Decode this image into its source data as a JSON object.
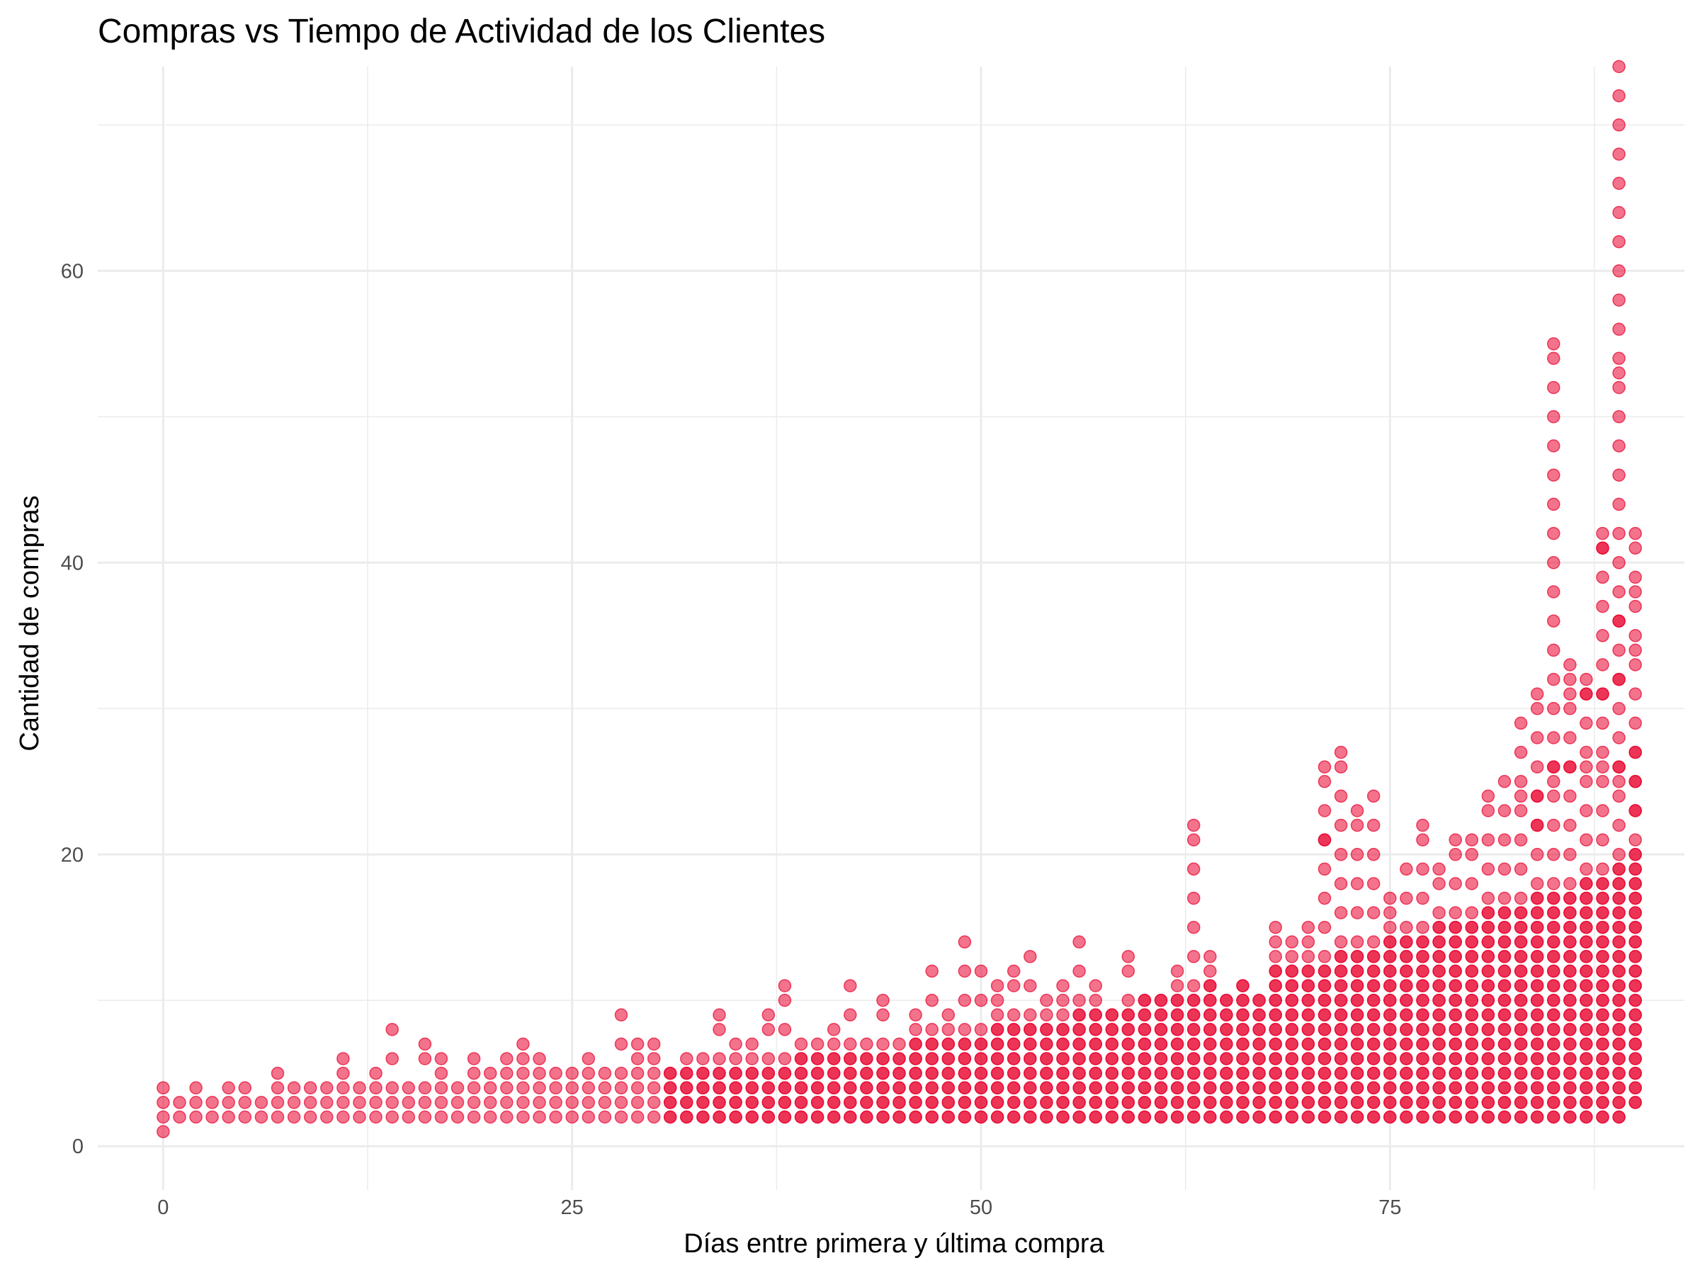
{
  "chart_data": {
    "type": "scatter",
    "title": "Compras vs Tiempo de Actividad de los Clientes",
    "xlabel": "Días entre primera y última compra",
    "ylabel": "Cantidad de compras",
    "xlim": [
      -4,
      93
    ],
    "ylim": [
      -3,
      74
    ],
    "x_ticks": [
      0,
      25,
      50,
      75
    ],
    "y_ticks": [
      0,
      20,
      40,
      60
    ],
    "grid": true,
    "legend": "none",
    "point_color": "#e8002c",
    "point_opacity": 0.55,
    "columns": [
      [
        0,
        1,
        4
      ],
      [
        1,
        2,
        3
      ],
      [
        2,
        2,
        4
      ],
      [
        3,
        2,
        3
      ],
      [
        4,
        2,
        4
      ],
      [
        5,
        2,
        4
      ],
      [
        6,
        2,
        3
      ],
      [
        7,
        2,
        5
      ],
      [
        8,
        2,
        4
      ],
      [
        9,
        2,
        4
      ],
      [
        10,
        2,
        4
      ],
      [
        11,
        2,
        6
      ],
      [
        12,
        2,
        4
      ],
      [
        13,
        2,
        5
      ],
      [
        14,
        2,
        8
      ],
      [
        15,
        2,
        4
      ],
      [
        16,
        2,
        7
      ],
      [
        17,
        2,
        6
      ],
      [
        18,
        2,
        4
      ],
      [
        19,
        2,
        6
      ],
      [
        20,
        2,
        5
      ],
      [
        21,
        2,
        6
      ],
      [
        22,
        2,
        7
      ],
      [
        23,
        2,
        6
      ],
      [
        24,
        2,
        5
      ],
      [
        25,
        2,
        5
      ],
      [
        26,
        2,
        6
      ],
      [
        27,
        2,
        5
      ],
      [
        28,
        2,
        9
      ],
      [
        29,
        2,
        7
      ],
      [
        30,
        2,
        7
      ],
      [
        31,
        2,
        5
      ],
      [
        32,
        2,
        6
      ],
      [
        33,
        2,
        6
      ],
      [
        34,
        2,
        9
      ],
      [
        35,
        2,
        7
      ],
      [
        36,
        2,
        7
      ],
      [
        37,
        2,
        9
      ],
      [
        38,
        2,
        11
      ],
      [
        39,
        2,
        7
      ],
      [
        40,
        2,
        7
      ],
      [
        41,
        2,
        8
      ],
      [
        42,
        2,
        11
      ],
      [
        43,
        2,
        7
      ],
      [
        44,
        2,
        10
      ],
      [
        45,
        2,
        7
      ],
      [
        46,
        2,
        9
      ],
      [
        47,
        2,
        12
      ],
      [
        48,
        2,
        9
      ],
      [
        49,
        2,
        14
      ],
      [
        50,
        2,
        12
      ],
      [
        51,
        2,
        11
      ],
      [
        52,
        2,
        12
      ],
      [
        53,
        2,
        13
      ],
      [
        54,
        2,
        10
      ],
      [
        55,
        2,
        11
      ],
      [
        56,
        2,
        14
      ],
      [
        57,
        2,
        11
      ],
      [
        58,
        2,
        9
      ],
      [
        59,
        2,
        13
      ],
      [
        60,
        2,
        10
      ],
      [
        61,
        2,
        10
      ],
      [
        62,
        2,
        12
      ],
      [
        63,
        2,
        22
      ],
      [
        64,
        2,
        13
      ],
      [
        65,
        2,
        10
      ],
      [
        66,
        2,
        11
      ],
      [
        67,
        2,
        10
      ],
      [
        68,
        2,
        15
      ],
      [
        69,
        2,
        14
      ],
      [
        70,
        2,
        15
      ],
      [
        71,
        2,
        26
      ],
      [
        72,
        2,
        27
      ],
      [
        73,
        2,
        23
      ],
      [
        74,
        2,
        24
      ],
      [
        75,
        2,
        17
      ],
      [
        76,
        2,
        19
      ],
      [
        77,
        2,
        22
      ],
      [
        78,
        2,
        19
      ],
      [
        79,
        2,
        21
      ],
      [
        80,
        2,
        21
      ],
      [
        81,
        2,
        24
      ],
      [
        82,
        2,
        25
      ],
      [
        83,
        2,
        29
      ],
      [
        84,
        2,
        31
      ],
      [
        85,
        2,
        55
      ],
      [
        86,
        2,
        33
      ],
      [
        87,
        2,
        32
      ],
      [
        88,
        2,
        42
      ],
      [
        89,
        2,
        74
      ],
      [
        90,
        3,
        42
      ]
    ],
    "outliers": [
      [
        89,
        53
      ],
      [
        89,
        36
      ],
      [
        89,
        32
      ],
      [
        90,
        38
      ],
      [
        90,
        34
      ],
      [
        90,
        27
      ],
      [
        88,
        41
      ],
      [
        88,
        31
      ],
      [
        87,
        31
      ],
      [
        86,
        31
      ],
      [
        84,
        24
      ],
      [
        84,
        22
      ],
      [
        83,
        24
      ],
      [
        71,
        21
      ],
      [
        85,
        26
      ],
      [
        85,
        25
      ],
      [
        86,
        26
      ],
      [
        87,
        26
      ],
      [
        88,
        26
      ],
      [
        89,
        26
      ],
      [
        90,
        25
      ],
      [
        90,
        23
      ],
      [
        89,
        25
      ]
    ]
  }
}
